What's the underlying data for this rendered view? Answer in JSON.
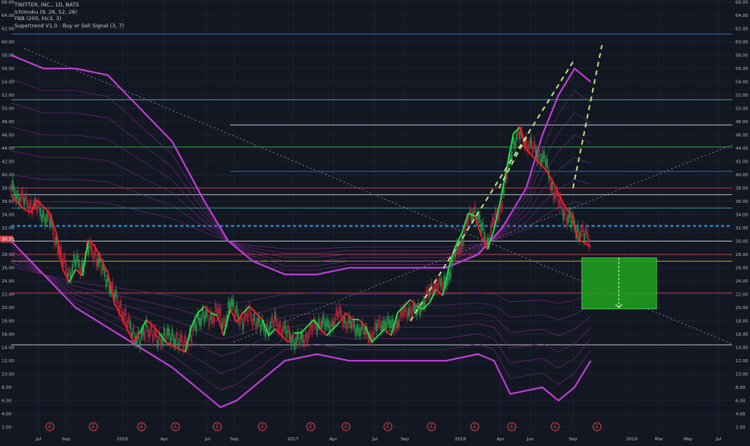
{
  "legend": {
    "title": "TWITTER, INC., 1D, BATS",
    "ichimoku": "Ichimoku (9, 26, 52, 26)",
    "fbb": "FBB (200, hlc3, 3)",
    "supertrend": "Supertrend V1.0 - Buy or Sell Signal (3, 7)"
  },
  "colors": {
    "background": "#131722",
    "grid": "#1f2433",
    "axis_text": "#b2b5be",
    "bollinger": "#c23fd6",
    "bollinger_inner": "#7a2c8a",
    "candles_up": "#2a9d4b",
    "candles_down": "#b4293c",
    "supertrend_up": "#21e04b",
    "supertrend_down": "#ff1a2a",
    "dotted_support": "#2d8fd6",
    "target_box": "#1ea51e",
    "trend_dashed": "#c9e68a",
    "price_tag": "#d0454c",
    "horizontal_green": "#3aa648",
    "horizontal_red": "#c2404f",
    "horizontal_blue": "#3d6fb0",
    "horizontal_teal": "#39a2a0",
    "horizontal_white": "#c8cbd3",
    "horizontal_yellow": "#b7b23a",
    "diagonal": "#8a8e99"
  },
  "chart_data": {
    "type": "line",
    "title": "TWITTER, INC., 1D, BATS",
    "x_ticks": [
      "Jul",
      "Sep",
      "2016",
      "Apr",
      "Jul",
      "Sep",
      "2017",
      "Apr",
      "Jul",
      "Sep",
      "2018",
      "Apr",
      "Jun",
      "Sep",
      "2019",
      "Mar",
      "May",
      "Jul"
    ],
    "y_ticks": [
      "2.00",
      "4.00",
      "6.00",
      "8.00",
      "10.00",
      "12.00",
      "14.00",
      "16.00",
      "18.00",
      "20.00",
      "22.00",
      "24.00",
      "26.00",
      "28.00",
      "30.00",
      "32.00",
      "34.00",
      "36.00",
      "38.00",
      "40.00",
      "42.00",
      "44.00",
      "46.00",
      "48.00",
      "50.00",
      "52.00",
      "54.00",
      "56.00",
      "58.00",
      "60.00",
      "62.00",
      "64.00",
      "66.00"
    ],
    "ylim": [
      1,
      66
    ],
    "last_price_label": "30.33",
    "last_price": 30.33,
    "series": [
      {
        "kind": "price",
        "x": [
          0,
          8,
          16,
          24,
          32,
          40,
          48,
          56,
          64,
          72,
          80,
          88,
          96,
          104,
          112,
          120,
          128,
          136,
          144,
          152,
          160,
          168,
          176,
          184,
          192,
          200,
          208,
          216,
          224,
          232,
          240,
          248,
          256,
          264,
          272,
          280,
          288,
          296,
          304,
          312,
          320,
          328,
          336,
          344,
          352,
          360,
          368,
          376,
          384,
          392,
          400,
          408,
          416,
          424,
          432,
          440,
          448,
          456,
          464,
          472,
          480,
          488,
          496,
          504,
          512,
          520,
          528,
          536,
          544,
          552,
          560,
          568,
          576,
          584,
          592,
          600,
          608,
          616,
          624,
          632,
          640,
          648,
          656,
          664,
          672,
          680,
          688,
          696,
          704,
          712,
          720
        ],
        "values": [
          38,
          37,
          36,
          35.5,
          35,
          34,
          33,
          30,
          27,
          25,
          27,
          26,
          29,
          28,
          26,
          24,
          22,
          20,
          18,
          16,
          15,
          17,
          16,
          15,
          16,
          15.5,
          15,
          14.5,
          16,
          18,
          19,
          18,
          20,
          17,
          21,
          19,
          18,
          19,
          18,
          17,
          17,
          18,
          17,
          16,
          15,
          15,
          16,
          17,
          18,
          17,
          18,
          19,
          18,
          17,
          17,
          16,
          16,
          17,
          18,
          17,
          18,
          19,
          20,
          19,
          21,
          22,
          24,
          23,
          25,
          28,
          30,
          33,
          35,
          32,
          30,
          33,
          35,
          40,
          45,
          46,
          45,
          44,
          43,
          42,
          38,
          36,
          34,
          33,
          31.5,
          31,
          30.33
        ]
      },
      {
        "kind": "bollinger_upper",
        "x": [
          0,
          40,
          80,
          120,
          160,
          200,
          240,
          270,
          300,
          340,
          380,
          420,
          460,
          500,
          540,
          580,
          610,
          640,
          660,
          680,
          700,
          720
        ],
        "values": [
          58,
          56,
          56,
          55,
          50,
          45,
          36,
          30,
          27,
          25,
          25,
          26,
          26,
          26,
          26,
          28,
          32,
          38,
          46,
          52,
          56,
          54
        ]
      },
      {
        "kind": "bollinger_lower",
        "x": [
          0,
          40,
          80,
          120,
          160,
          200,
          240,
          260,
          280,
          300,
          340,
          380,
          420,
          460,
          500,
          540,
          580,
          600,
          620,
          660,
          680,
          700,
          720
        ],
        "values": [
          30,
          25,
          20,
          17,
          14,
          11,
          7,
          5,
          6,
          8,
          12,
          13,
          12,
          12,
          12,
          12,
          13,
          12,
          7,
          8,
          6,
          8,
          12
        ]
      }
    ],
    "target_box": {
      "y_top": 27.5,
      "y_bottom": 19.8,
      "arrow_from": 27.5,
      "arrow_to": 20
    }
  }
}
